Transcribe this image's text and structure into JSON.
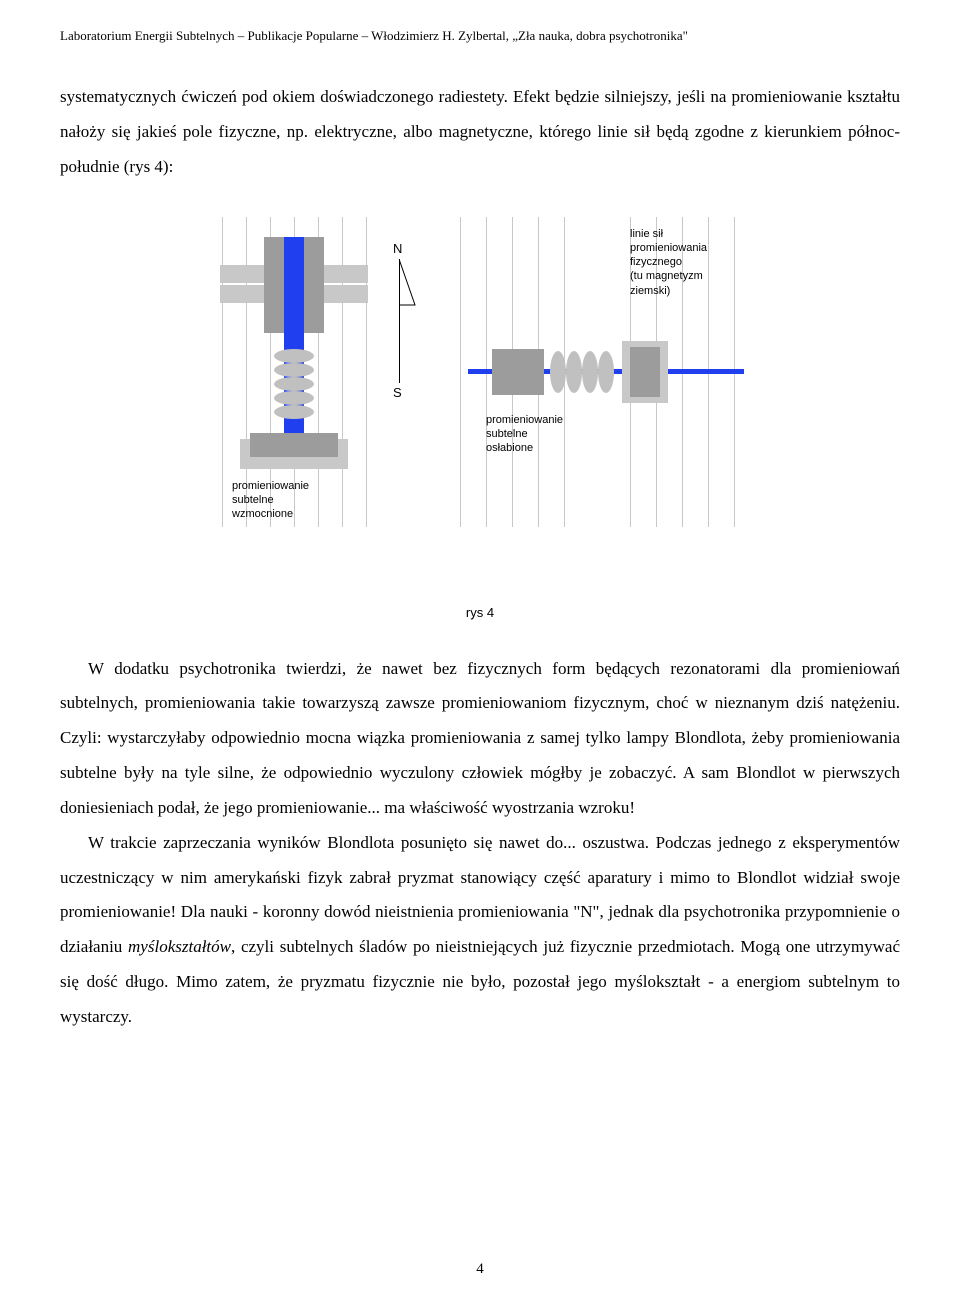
{
  "header": "Laboratorium Energii Subtelnych – Publikacje Popularne – Włodzimierz H. Zylbertal, „Zła nauka, dobra psychotronika\"",
  "para1": "systematycznych ćwiczeń pod okiem doświadczonego radiestety. Efekt będzie silniejszy, jeśli na promieniowanie kształtu nałoży się jakieś pole fizyczne, np. elektryczne, albo magnetyczne, którego linie sił będą zgodne z kierunkiem północ-południe (rys 4):",
  "figure": {
    "vlines_x": [
      32,
      56,
      80,
      104,
      128,
      152,
      176,
      270,
      296,
      322,
      348,
      374,
      440,
      466,
      492,
      518,
      544
    ],
    "compass": {
      "n": "N",
      "s": "S"
    },
    "label_top": "linie sił\npromieniowania\nfizycznego\n(tu magnetyzm\nziemski)",
    "label_mid": "promieniowanie\nsubtelne\nosłabione",
    "label_left": "promieniowanie\nsubtelne\nwzmocnione",
    "caption": "rys 4",
    "colors": {
      "blue": "#2040f0",
      "grey": "#9c9c9c",
      "lightgrey": "#c8c8c8",
      "coil": "#c0c0c0",
      "grid": "#c8c8c8"
    }
  },
  "para2a": "W dodatku psychotronika twierdzi, że nawet bez fizycznych form będących rezonatorami dla promieniowań subtelnych, promieniowania takie towarzyszą zawsze promieniowaniom fizycznym, choć w nieznanym dziś natężeniu. Czyli: wystarczyłaby odpowiednio mocna wiązka promieniowania z samej tylko lampy Blondlota, żeby promieniowania subtelne były na tyle silne, że odpowiednio wyczulony człowiek mógłby je zobaczyć. A sam Blondlot w pierwszych doniesieniach podał, że jego promieniowanie... ma właściwość wyostrzania wzroku!",
  "para2b_a": "W trakcie zaprzeczania wyników Blondlota posunięto się nawet do... oszustwa. Podczas jednego z eksperymentów uczestniczący w nim amerykański fizyk zabrał pryzmat stanowiący część aparatury i mimo to Blondlot widział swoje promieniowanie! Dla nauki - koronny dowód nieistnienia promieniowania \"N\", jednak dla psychotronika przypomnienie o działaniu ",
  "para2b_it": "myślokształtów",
  "para2b_b": ", czyli subtelnych śladów po nieistniejących już fizycznie przedmiotach. Mogą one utrzymywać się dość długo. Mimo zatem, że pryzmatu fizycznie nie było, pozostał jego myślokształt - a energiom subtelnym to wystarczy.",
  "page_number": "4"
}
